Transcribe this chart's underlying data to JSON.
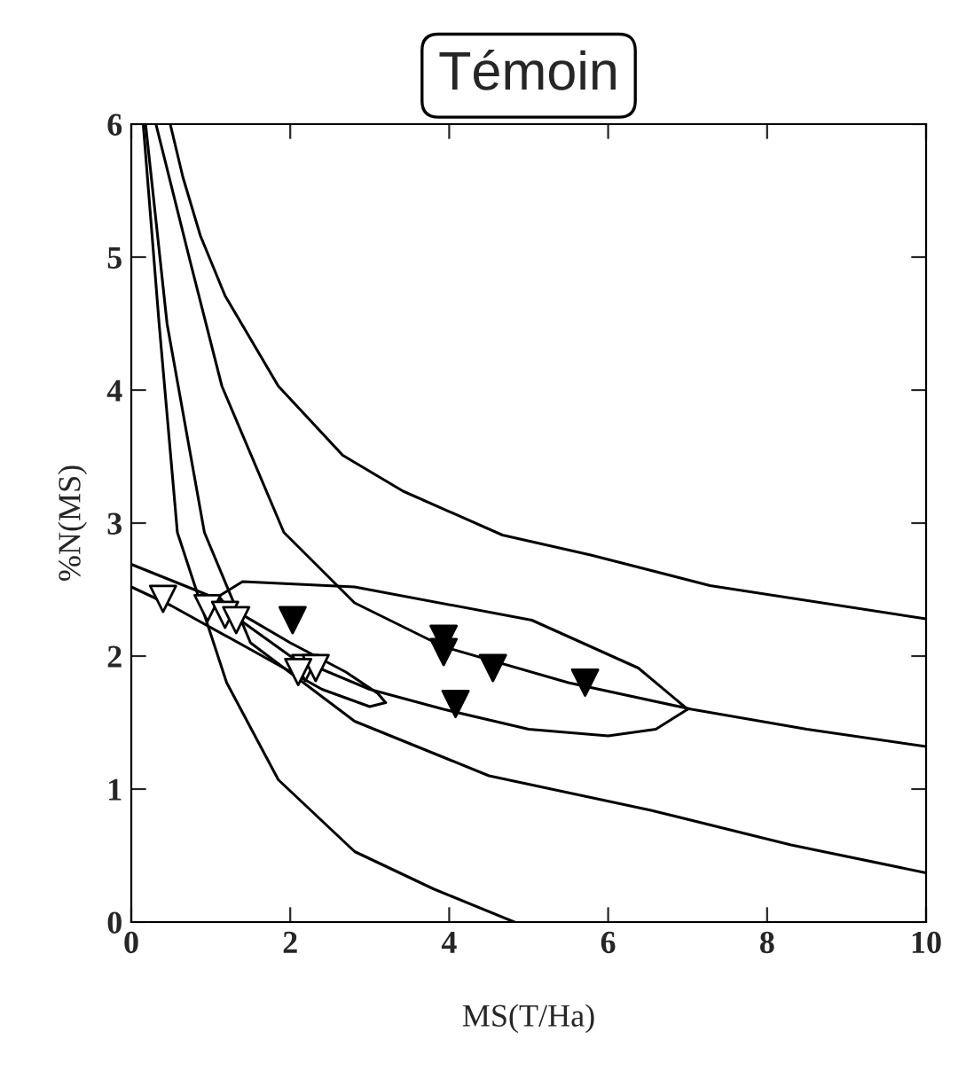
{
  "chart_data": {
    "type": "scatter",
    "title": "Témoin",
    "xlabel": "MS(T/Ha)",
    "ylabel": "%N(MS)",
    "xlim": [
      0,
      10
    ],
    "ylim": [
      0,
      6
    ],
    "xticks": [
      0,
      2,
      4,
      6,
      8,
      10
    ],
    "yticks": [
      0,
      1,
      2,
      3,
      4,
      5,
      6
    ],
    "grid": false,
    "legend": false,
    "series": [
      {
        "type": "line",
        "marker": "none",
        "color": "#000000",
        "x": [
          0.49,
          0.65,
          0.87,
          1.18,
          1.85,
          2.66,
          3.42,
          4.67,
          5.78,
          7.28,
          10
        ],
        "values": [
          6,
          5.6,
          5.16,
          4.71,
          4.03,
          3.51,
          3.24,
          2.91,
          2.76,
          2.53,
          2.28
        ]
      },
      {
        "type": "line",
        "marker": "none",
        "color": "#000000",
        "x": [
          0.31,
          0.74,
          1.14,
          1.92,
          2.81,
          3.93,
          5.5,
          7.05,
          8.5,
          10
        ],
        "values": [
          6,
          4.97,
          4.03,
          2.93,
          2.4,
          2.07,
          1.8,
          1.6,
          1.45,
          1.32
        ]
      },
      {
        "type": "line",
        "marker": "none",
        "color": "#000000",
        "x": [
          0.18,
          0.45,
          0.92,
          1.5,
          2.81,
          4.5,
          6.54,
          8.3,
          10
        ],
        "values": [
          6,
          4.5,
          2.93,
          2.1,
          1.51,
          1.1,
          0.84,
          0.58,
          0.37
        ]
      },
      {
        "type": "line",
        "marker": "none",
        "color": "#000000",
        "x": [
          0.15,
          0.35,
          0.58,
          1.2,
          1.85,
          2.81,
          3.8,
          4.82
        ],
        "values": [
          6,
          4.5,
          2.93,
          1.8,
          1.07,
          0.53,
          0.25,
          0
        ]
      },
      {
        "type": "line",
        "marker": "none",
        "color": "#000000",
        "x": [
          0,
          1,
          2,
          2.7,
          3.1,
          3.2
        ],
        "values": [
          2.69,
          2.45,
          2.1,
          1.88,
          1.72,
          1.65
        ]
      },
      {
        "type": "line",
        "marker": "none",
        "color": "#000000",
        "x": [
          0,
          0.5,
          1.5,
          2.4,
          3.0,
          3.2
        ],
        "values": [
          2.52,
          2.38,
          2.05,
          1.75,
          1.62,
          1.65
        ]
      },
      {
        "type": "line",
        "marker": "none",
        "color": "#000000",
        "x": [
          1.1,
          1.4,
          2.81,
          5.04,
          6.38,
          7.0
        ],
        "values": [
          2.45,
          2.56,
          2.52,
          2.27,
          1.91,
          1.6
        ]
      },
      {
        "type": "line",
        "marker": "none",
        "color": "#000000",
        "x": [
          1.1,
          1.3,
          2.0,
          3.0,
          3.93,
          5.0,
          6.0,
          6.6,
          7.0
        ],
        "values": [
          2.45,
          2.3,
          2.0,
          1.75,
          1.6,
          1.45,
          1.4,
          1.45,
          1.6
        ]
      },
      {
        "type": "scatter",
        "marker": "triangle",
        "color": "#000000",
        "x": [
          2.03,
          3.93,
          3.93,
          4.55,
          5.71,
          4.08
        ],
        "values": [
          2.27,
          2.13,
          2.03,
          1.91,
          1.8,
          1.64
        ]
      },
      {
        "type": "scatter",
        "marker": "triangle",
        "color": "#ffffff",
        "x": [
          0.4,
          0.96,
          1.18,
          1.32,
          2.19,
          2.32,
          2.1
        ],
        "values": [
          2.43,
          2.36,
          2.31,
          2.27,
          1.91,
          1.91,
          1.88
        ]
      }
    ]
  }
}
